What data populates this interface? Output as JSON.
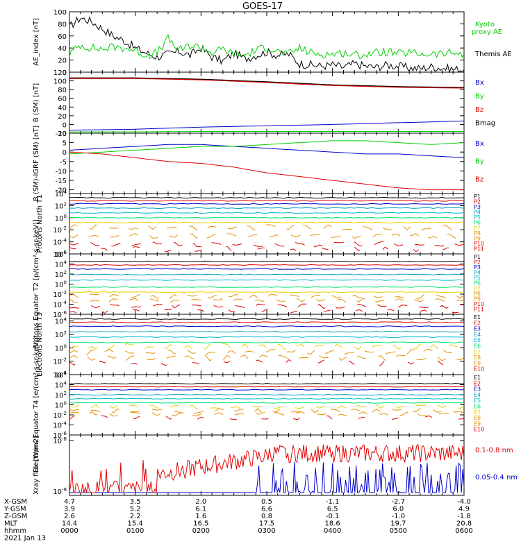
{
  "title": "GOES-17",
  "colors": {
    "black": "#000000",
    "red": "#e00000",
    "green": "#00d000",
    "blue": "#0000cc",
    "cyan": "#00bcd0",
    "lightgreen": "#00e070",
    "yellow": "#e8d000",
    "orange": "#e89000",
    "teal": "#00a0c0"
  },
  "chart_data": [
    {
      "type": "line",
      "ylabel": "AE_index [nT]",
      "ylim": [
        0,
        100
      ],
      "yticks": [
        0,
        20,
        40,
        60,
        80,
        100
      ],
      "legend": [
        "Kyoto proxy AE",
        "Themis AE"
      ],
      "series": [
        {
          "name": "Themis AE",
          "x": [
            0,
            10,
            20,
            30,
            40,
            50,
            60,
            70,
            80,
            90,
            100,
            110,
            120,
            130,
            140,
            150,
            160,
            170,
            180,
            190,
            200,
            210,
            220,
            230,
            240,
            250,
            260,
            270,
            280,
            290,
            300,
            310,
            320,
            330,
            340,
            350,
            360
          ],
          "y": [
            75,
            90,
            84,
            72,
            60,
            52,
            40,
            32,
            25,
            30,
            34,
            28,
            40,
            25,
            18,
            32,
            22,
            28,
            33,
            28,
            30,
            14,
            12,
            10,
            12,
            8,
            14,
            10,
            8,
            12,
            10,
            7,
            6,
            9,
            7,
            5,
            4
          ]
        },
        {
          "name": "Kyoto proxy AE",
          "x": [
            0,
            10,
            20,
            30,
            40,
            50,
            60,
            70,
            80,
            90,
            100,
            110,
            120,
            130,
            140,
            150,
            160,
            170,
            180,
            190,
            200,
            210,
            220,
            230,
            240,
            250,
            260,
            270,
            280,
            290,
            300,
            310,
            320,
            330,
            340,
            350,
            360
          ],
          "y": [
            30,
            45,
            40,
            38,
            42,
            40,
            36,
            28,
            32,
            55,
            36,
            44,
            42,
            32,
            38,
            30,
            28,
            36,
            42,
            34,
            30,
            40,
            32,
            30,
            30,
            32,
            28,
            30,
            32,
            34,
            30,
            32,
            30,
            30,
            30,
            32,
            30
          ]
        }
      ]
    },
    {
      "type": "line",
      "ylabel": "B (SM) [nT]",
      "ylim": [
        -20,
        120
      ],
      "yticks": [
        -20,
        0,
        20,
        40,
        60,
        80,
        100,
        120
      ],
      "legend": [
        "Bx",
        "By",
        "Bz",
        "Bmag"
      ],
      "series": [
        {
          "name": "Bx",
          "x": [
            0,
            60,
            120,
            180,
            240,
            300,
            360
          ],
          "y": [
            -13,
            -11,
            -6,
            -3,
            0,
            4,
            8
          ]
        },
        {
          "name": "By",
          "x": [
            0,
            60,
            120,
            180,
            240,
            300,
            360
          ],
          "y": [
            -17,
            -17,
            -16,
            -16,
            -16,
            -16,
            -16
          ]
        },
        {
          "name": "Bz",
          "x": [
            0,
            60,
            120,
            180,
            240,
            300,
            360
          ],
          "y": [
            106,
            106,
            103,
            97,
            90,
            86,
            84
          ]
        },
        {
          "name": "Bmag",
          "x": [
            0,
            60,
            120,
            180,
            240,
            300,
            360
          ],
          "y": [
            107,
            107,
            104,
            98,
            91,
            87,
            85
          ]
        }
      ]
    },
    {
      "type": "line",
      "ylabel": "B (SM)-IGRF (SM) [nT]",
      "ylim": [
        -22,
        10
      ],
      "yticks": [
        -20,
        -15,
        -10,
        -5,
        0,
        5,
        10
      ],
      "legend": [
        "Bx",
        "By",
        "Bz"
      ],
      "series": [
        {
          "name": "Bx",
          "x": [
            0,
            30,
            60,
            90,
            120,
            150,
            180,
            210,
            240,
            270,
            300,
            330,
            360
          ],
          "y": [
            1,
            2,
            3,
            4,
            4,
            3,
            2,
            1,
            0,
            -1,
            -1,
            -2,
            -3
          ]
        },
        {
          "name": "By",
          "x": [
            0,
            30,
            60,
            90,
            120,
            150,
            180,
            210,
            240,
            270,
            300,
            330,
            360
          ],
          "y": [
            -1,
            0,
            1,
            2,
            3,
            3,
            4,
            5,
            6,
            6,
            5,
            4,
            5
          ]
        },
        {
          "name": "Bz",
          "x": [
            0,
            30,
            60,
            90,
            120,
            150,
            180,
            210,
            240,
            270,
            300,
            330,
            360
          ],
          "y": [
            0,
            -1,
            -3,
            -5,
            -6,
            -8,
            -11,
            -13,
            -15,
            -17,
            -19,
            -20,
            -20
          ]
        }
      ]
    },
    {
      "type": "line",
      "ylabel": "Protons North T1",
      "yscale": "log",
      "ylim": [
        -6,
        4
      ],
      "ytick_labels": [
        "10^-6",
        "10^-4",
        "10^-2",
        "10^0",
        "10^2",
        "10^4"
      ],
      "legend": [
        "P1",
        "P2",
        "P3",
        "P4",
        "P5",
        "P6",
        "P7",
        "P8",
        "P9",
        "P10",
        "P11"
      ],
      "levels_log10": [
        3.3,
        2.8,
        2.3,
        1.6,
        0.8,
        0.0,
        -0.8,
        -1.6,
        -3.0,
        -4.4,
        -5.2
      ]
    },
    {
      "type": "line",
      "ylabel": "Protons Equator T2 [p/(cm²-s-sr-keV)]",
      "yscale": "log",
      "ylim": [
        -6,
        6
      ],
      "ytick_labels": [
        "10^-6",
        "10^-4",
        "10^-2",
        "10^0",
        "10^2",
        "10^4",
        "10^6"
      ],
      "legend": [
        "P1",
        "P2",
        "P3",
        "P4",
        "P5",
        "P6",
        "P7",
        "P8",
        "P9",
        "P10",
        "P11"
      ],
      "levels_log10": [
        4.5,
        3.8,
        3.0,
        1.9,
        0.8,
        -0.6,
        -1.6,
        -2.4,
        -3.2,
        -4.4,
        -5.4
      ]
    },
    {
      "type": "line",
      "ylabel": "Electrons North T3",
      "yscale": "log",
      "ylim": [
        -4,
        5
      ],
      "ytick_labels": [
        "10^-4",
        "10^-2",
        "10^0",
        "10^2",
        "10^4"
      ],
      "legend": [
        "E1",
        "E2",
        "E3",
        "E4",
        "E5",
        "E6",
        "E7",
        "E8",
        "E9",
        "E10"
      ],
      "levels_log10": [
        4.3,
        3.8,
        3.2,
        2.4,
        1.6,
        0.8,
        0.2,
        -0.6,
        -1.5,
        -2.2
      ]
    },
    {
      "type": "line",
      "ylabel": "Electrons Equator T4 [e/(cm²-s-sr-keV)]",
      "yscale": "log",
      "ylim": [
        -6,
        6
      ],
      "ytick_labels": [
        "10^-6",
        "10^-4",
        "10^-2",
        "10^0",
        "10^2",
        "10^4",
        "10^6"
      ],
      "legend": [
        "E1",
        "E2",
        "E3",
        "E4",
        "E5",
        "E6",
        "E7",
        "E8",
        "E9",
        "E10"
      ],
      "levels_log10": [
        4.2,
        3.6,
        3.0,
        2.0,
        1.2,
        0.4,
        -0.4,
        -1.2,
        -1.8,
        -2.6
      ]
    },
    {
      "type": "line",
      "ylabel": "Xray flux [W/m2]",
      "yscale": "log",
      "ytick_labels": [
        "10^-9",
        "10^-8"
      ],
      "legend": [
        "0.1-0.8 nm",
        "0.05-0.4 nm"
      ]
    }
  ],
  "xaxis": {
    "ticks_minutes": [
      0,
      60,
      120,
      180,
      240,
      300,
      360
    ],
    "rows": [
      {
        "label": "X-GSM",
        "values": [
          "4.7",
          "3.5",
          "2.0",
          "0.5",
          "-1.1",
          "-2.7",
          "-4.0"
        ]
      },
      {
        "label": "Y-GSM",
        "values": [
          "3.9",
          "5.2",
          "6.1",
          "6.6",
          "6.5",
          "6.0",
          "4.9"
        ]
      },
      {
        "label": "Z-GSM",
        "values": [
          "2.6",
          "2.2",
          "1.6",
          "0.8",
          "-0.1",
          "-1.0",
          "-1.8"
        ]
      },
      {
        "label": "MLT",
        "values": [
          "14.4",
          "15.4",
          "16.5",
          "17.5",
          "18.6",
          "19.7",
          "20.8"
        ]
      },
      {
        "label": "hhmm",
        "values": [
          "0000",
          "0100",
          "0200",
          "0300",
          "0400",
          "0500",
          "0600"
        ]
      }
    ],
    "date": "2021 Jan 13"
  }
}
